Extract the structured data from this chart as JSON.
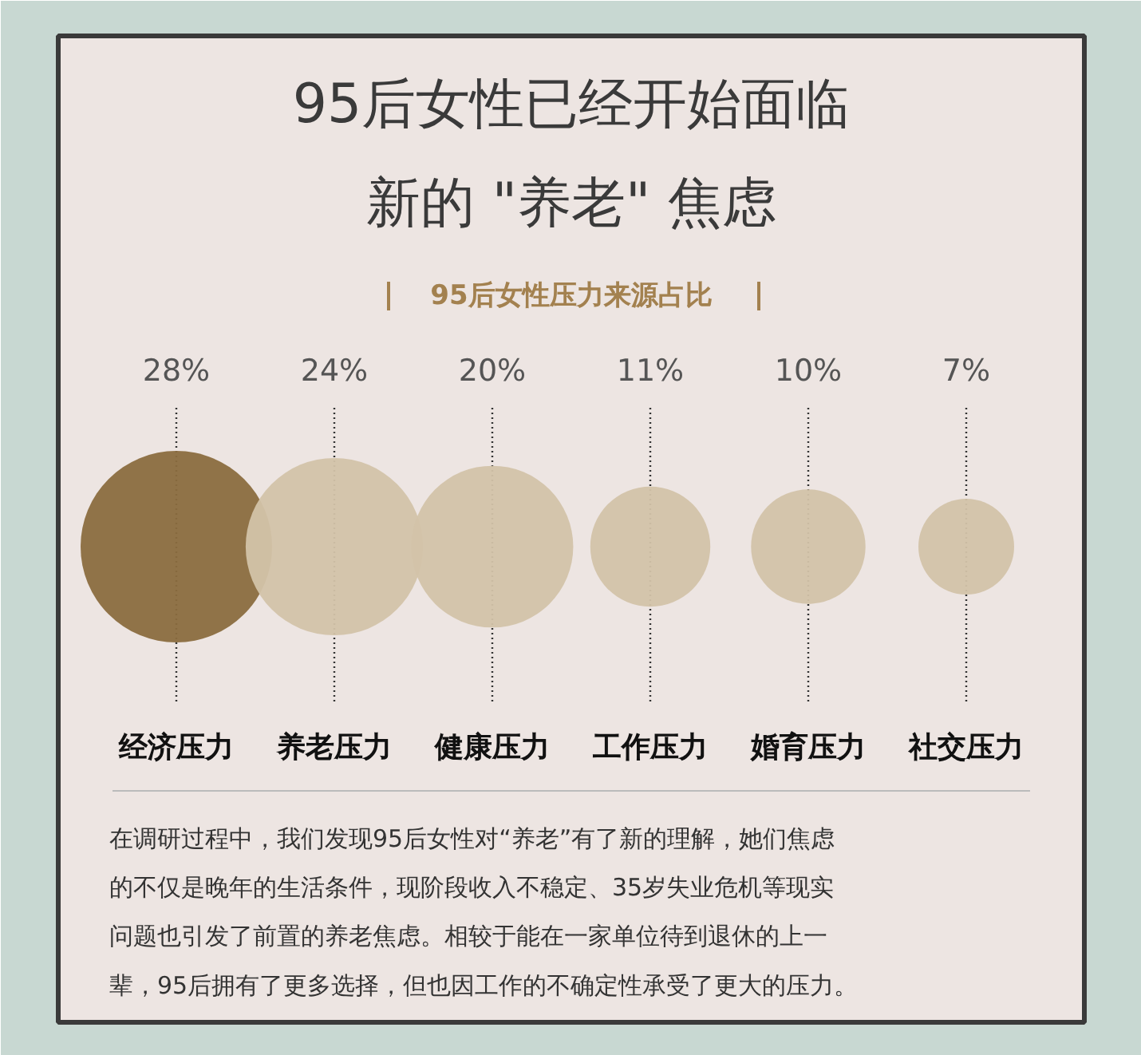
{
  "chart_data": {
    "type": "other",
    "title": "95后女性已经开始面临新的 \"养老\" 焦虑",
    "subtitle": "95后女性压力来源占比",
    "categories": [
      "经济压力",
      "养老压力",
      "健康压力",
      "工作压力",
      "婚育压力",
      "社交压力"
    ],
    "values": [
      28,
      24,
      20,
      11,
      10,
      7
    ],
    "colors": [
      "#8b6d3f",
      "#d3c3a9",
      "#d3c3a9",
      "#d3c3a9",
      "#d3c3a9",
      "#d3c3a9"
    ],
    "value_labels": [
      "28%",
      "24%",
      "20%",
      "11%",
      "10%",
      "7%"
    ],
    "annotations": [
      "在调研过程中，我们发现95后女性对“养老”有了新的理解，她们焦虑的不仅是晚年的生活条件，现阶段收入不稳定、35岁失业危机等现实问题也引发了前置的养老焦虑。相较于能在一家单位待到退休的上一辈，95后拥有了更多选择，但也因工作的不确定性承受了更大的压力。"
    ]
  }
}
